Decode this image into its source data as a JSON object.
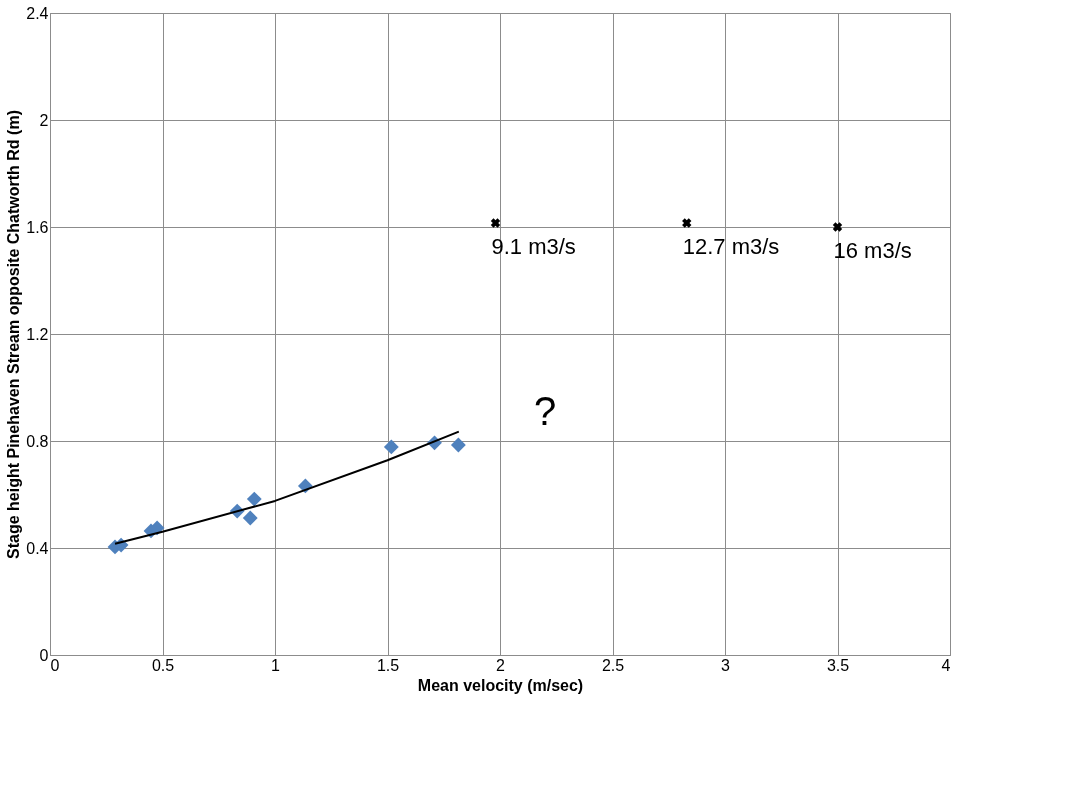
{
  "chart_data": {
    "type": "scatter",
    "xlabel": "Mean velocity (m/sec)",
    "ylabel": "Stage height Pinehaven Stream  opposite Chatworth Rd (m)",
    "xlim": [
      0,
      4
    ],
    "xticks": [
      0,
      0.5,
      1,
      1.5,
      2,
      2.5,
      3,
      3.5,
      4
    ],
    "ylim": [
      0,
      2.4
    ],
    "yticks": [
      0,
      0.4,
      0.8,
      1.2,
      1.6,
      2,
      2.4
    ],
    "grid": true,
    "series": [
      {
        "marker": "diamond",
        "color": "#4f81bd",
        "x": [
          0.289,
          0.316,
          0.449,
          0.476,
          0.832,
          0.89,
          0.908,
          1.135,
          1.517,
          1.709,
          1.815
        ],
        "values": [
          0.404,
          0.411,
          0.464,
          0.475,
          0.538,
          0.512,
          0.583,
          0.632,
          0.778,
          0.793,
          0.785
        ]
      },
      {
        "type": "line",
        "marker": "none",
        "line_style": "solid",
        "color": "#000000",
        "x": [
          0.289,
          0.5,
          1.0,
          1.5,
          1.817
        ],
        "values": [
          0.416,
          0.461,
          0.576,
          0.728,
          0.835
        ]
      },
      {
        "marker": "cross",
        "color": "#000000",
        "x": [
          1.98,
          2.83,
          3.5
        ],
        "values": [
          1.615,
          1.615,
          1.6
        ]
      }
    ],
    "annotations": [
      {
        "text": "9.1 m3/s",
        "x": 1.98,
        "y": 1.615
      },
      {
        "text": "12.7 m3/s",
        "x": 2.83,
        "y": 1.615
      },
      {
        "text": "16 m3/s",
        "x": 3.5,
        "y": 1.6
      },
      "?"
    ]
  }
}
